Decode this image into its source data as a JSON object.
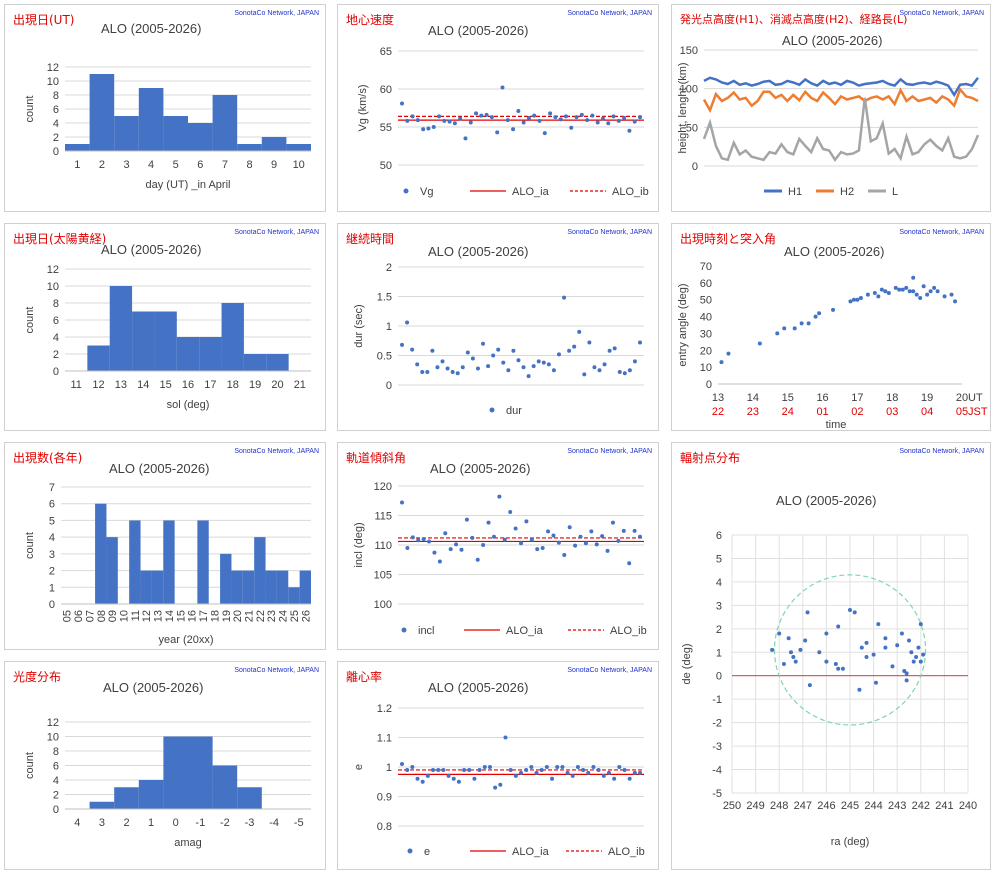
{
  "credit": "SonotaCo Network, JAPAN",
  "colors": {
    "blue": "#4472c4",
    "orange": "#ed7d31",
    "gray": "#a5a5a5",
    "red": "#e00000",
    "mint": "#7fd6b0"
  },
  "panels": [
    {
      "id": "p1",
      "title": "出現日(UT)"
    },
    {
      "id": "p2",
      "title": "地心速度"
    },
    {
      "id": "p3",
      "title": "発光点高度(H1)、消滅点高度(H2)、経路長(L)"
    },
    {
      "id": "p4",
      "title": "出現日(太陽黄経)"
    },
    {
      "id": "p5",
      "title": "継続時間"
    },
    {
      "id": "p6",
      "title": "出現時刻と突入角"
    },
    {
      "id": "p7",
      "title": "出現数(各年)"
    },
    {
      "id": "p8",
      "title": "軌道傾斜角"
    },
    {
      "id": "p9",
      "title": "輻射点分布"
    },
    {
      "id": "p10",
      "title": "光度分布"
    },
    {
      "id": "p11",
      "title": "離心率"
    }
  ],
  "chart_data": [
    {
      "id": "p1",
      "type": "bar",
      "title": "ALO (2005-2026)",
      "xlabel": "day (UT) _in April",
      "ylabel": "count",
      "ylim": [
        0,
        12
      ],
      "bin_edges": [
        0.5,
        1.5,
        2.5,
        3.5,
        4.5,
        5.5,
        6.5,
        7.5,
        8.5,
        9.5,
        10.5
      ],
      "values": [
        1,
        11,
        5,
        9,
        5,
        4,
        8,
        1,
        2,
        1
      ],
      "xticks": [
        "1",
        "2",
        "3",
        "4",
        "5",
        "6",
        "7",
        "8",
        "9",
        "10"
      ],
      "yticks": [
        "0",
        "2",
        "4",
        "6",
        "8",
        "10",
        "12"
      ]
    },
    {
      "id": "p2",
      "type": "scatter",
      "title": "ALO (2005-2026)",
      "ylabel": "Vg (km/s)",
      "ylim": [
        50,
        65
      ],
      "yticks": [
        "50",
        "55",
        "60",
        "65"
      ],
      "series": [
        {
          "name": "Vg",
          "values": [
            58.1,
            55.8,
            56.4,
            55.9,
            54.7,
            54.8,
            55.0,
            56.4,
            55.8,
            55.7,
            55.5,
            56.1,
            53.5,
            55.6,
            56.8,
            56.5,
            56.6,
            56.3,
            54.3,
            60.2,
            55.9,
            54.7,
            57.1,
            55.6,
            56.2,
            56.5,
            55.8,
            54.2,
            56.8,
            56.3,
            56.0,
            56.4,
            54.9,
            56.3,
            56.6,
            55.9,
            56.5,
            55.6,
            56.1,
            55.5,
            56.4,
            55.8,
            56.2,
            54.5,
            55.7,
            56.3
          ]
        },
        {
          "name": "ALO_ia",
          "value": 55.9
        },
        {
          "name": "ALO_ib",
          "value": 56.4
        }
      ]
    },
    {
      "id": "p3",
      "type": "line",
      "title": "ALO (2005-2026)",
      "ylabel": "height, lenght (km)",
      "ylim": [
        0,
        150
      ],
      "yticks": [
        "0",
        "50",
        "100",
        "150"
      ],
      "series": [
        {
          "name": "H1",
          "values": [
            110,
            114,
            112,
            108,
            106,
            110,
            105,
            107,
            104,
            106,
            109,
            110,
            105,
            106,
            110,
            108,
            105,
            112,
            107,
            104,
            110,
            106,
            108,
            105,
            110,
            108,
            104,
            106,
            107,
            108,
            110,
            106,
            104,
            112,
            106,
            105,
            107,
            108,
            106,
            109,
            107,
            104,
            92,
            105,
            106,
            104,
            114
          ]
        },
        {
          "name": "H2",
          "values": [
            86,
            72,
            93,
            84,
            88,
            95,
            86,
            88,
            78,
            84,
            96,
            96,
            88,
            92,
            84,
            92,
            85,
            96,
            88,
            84,
            95,
            88,
            80,
            90,
            86,
            88,
            90,
            84,
            88,
            90,
            86,
            90,
            80,
            98,
            84,
            90,
            84,
            86,
            88,
            82,
            90,
            86,
            78,
            99,
            90,
            88,
            84
          ]
        },
        {
          "name": "L",
          "values": [
            35,
            56,
            26,
            10,
            8,
            30,
            15,
            20,
            12,
            10,
            8,
            18,
            16,
            28,
            18,
            15,
            35,
            26,
            18,
            36,
            22,
            20,
            8,
            18,
            15,
            16,
            20,
            88,
            32,
            36,
            55,
            16,
            22,
            10,
            38,
            15,
            18,
            28,
            34,
            26,
            20,
            36,
            12,
            10,
            12,
            22,
            40
          ]
        }
      ]
    },
    {
      "id": "p4",
      "type": "bar",
      "title": "ALO (2005-2026)",
      "xlabel": "sol (deg)",
      "ylabel": "count",
      "ylim": [
        0,
        12
      ],
      "bin_edges": [
        11.5,
        12.5,
        13.5,
        14.5,
        15.5,
        16.5,
        17.5,
        18.5,
        19.5,
        20.5
      ],
      "values": [
        3,
        10,
        7,
        7,
        4,
        4,
        8,
        2,
        2
      ],
      "xticks": [
        "11",
        "12",
        "13",
        "14",
        "15",
        "16",
        "17",
        "18",
        "19",
        "20",
        "21"
      ],
      "yticks": [
        "0",
        "2",
        "4",
        "6",
        "8",
        "10",
        "12"
      ]
    },
    {
      "id": "p5",
      "type": "scatter",
      "title": "ALO (2005-2026)",
      "ylabel": "dur (sec)",
      "ylim": [
        0,
        2
      ],
      "yticks": [
        "0",
        "0.5",
        "1",
        "1.5",
        "2"
      ],
      "series": [
        {
          "name": "dur",
          "values": [
            0.68,
            1.06,
            0.6,
            0.35,
            0.22,
            0.22,
            0.58,
            0.3,
            0.4,
            0.28,
            0.22,
            0.2,
            0.3,
            0.55,
            0.45,
            0.28,
            0.7,
            0.32,
            0.5,
            0.6,
            0.38,
            0.25,
            0.58,
            0.42,
            0.3,
            0.15,
            0.32,
            0.4,
            0.38,
            0.35,
            0.25,
            0.52,
            1.48,
            0.58,
            0.65,
            0.9,
            0.18,
            0.72,
            0.3,
            0.25,
            0.35,
            0.58,
            0.62,
            0.22,
            0.2,
            0.25,
            0.4,
            0.72
          ]
        }
      ]
    },
    {
      "id": "p6",
      "type": "scatter",
      "title": "ALO (2005-2026)",
      "xlabel": "time",
      "ylabel": "entry angle (deg)",
      "xlim": [
        13,
        20
      ],
      "ylim": [
        0,
        70
      ],
      "xticks": [
        "13",
        "14",
        "15",
        "16",
        "17",
        "18",
        "19",
        "20"
      ],
      "xticks_jst": [
        "22",
        "23",
        "24",
        "01",
        "02",
        "03",
        "04",
        "05"
      ],
      "yticks": [
        "0",
        "10",
        "20",
        "30",
        "40",
        "50",
        "60",
        "70"
      ],
      "axis_tags": [
        "UT",
        "JST"
      ],
      "series": [
        {
          "name": "entry angle",
          "points": [
            [
              13.1,
              13
            ],
            [
              13.3,
              18
            ],
            [
              14.2,
              24
            ],
            [
              14.7,
              30
            ],
            [
              14.9,
              33
            ],
            [
              15.2,
              33
            ],
            [
              15.4,
              36
            ],
            [
              15.6,
              36
            ],
            [
              15.8,
              40
            ],
            [
              15.9,
              42
            ],
            [
              16.3,
              44
            ],
            [
              16.8,
              49
            ],
            [
              16.9,
              50
            ],
            [
              17.0,
              50
            ],
            [
              17.1,
              51
            ],
            [
              17.3,
              53
            ],
            [
              17.5,
              54
            ],
            [
              17.6,
              52
            ],
            [
              17.7,
              56
            ],
            [
              17.8,
              55
            ],
            [
              17.9,
              54
            ],
            [
              18.1,
              57
            ],
            [
              18.2,
              56
            ],
            [
              18.3,
              56
            ],
            [
              18.4,
              57
            ],
            [
              18.5,
              55
            ],
            [
              18.6,
              63
            ],
            [
              18.6,
              55
            ],
            [
              18.7,
              53
            ],
            [
              18.8,
              51
            ],
            [
              18.9,
              58
            ],
            [
              19.0,
              53
            ],
            [
              19.1,
              55
            ],
            [
              19.2,
              57
            ],
            [
              19.3,
              55
            ],
            [
              19.5,
              52
            ],
            [
              19.7,
              53
            ],
            [
              19.8,
              49
            ]
          ]
        }
      ]
    },
    {
      "id": "p7",
      "type": "bar",
      "title": "ALO (2005-2026)",
      "xlabel": "year (20xx)",
      "ylabel": "count",
      "ylim": [
        0,
        7
      ],
      "categories": [
        "05",
        "06",
        "07",
        "08",
        "09",
        "10",
        "11",
        "12",
        "13",
        "14",
        "15",
        "16",
        "17",
        "18",
        "19",
        "20",
        "21",
        "22",
        "23",
        "24",
        "25",
        "26"
      ],
      "values": [
        0,
        0,
        0,
        6,
        4,
        0,
        5,
        2,
        2,
        5,
        0,
        0,
        5,
        0,
        3,
        2,
        2,
        4,
        2,
        2,
        1,
        2
      ],
      "yticks": [
        "0",
        "1",
        "2",
        "3",
        "4",
        "5",
        "6",
        "7"
      ]
    },
    {
      "id": "p8",
      "type": "scatter",
      "title": "ALO (2005-2026)",
      "ylabel": "incl (deg)",
      "ylim": [
        100,
        120
      ],
      "yticks": [
        "100",
        "105",
        "110",
        "115",
        "120"
      ],
      "series": [
        {
          "name": "incl",
          "values": [
            117.2,
            109.5,
            111.3,
            110.8,
            111.0,
            110.6,
            108.7,
            107.2,
            112.0,
            109.3,
            110.1,
            109.2,
            114.3,
            111.2,
            107.5,
            110.0,
            113.8,
            111.4,
            118.2,
            110.9,
            115.6,
            112.8,
            110.3,
            114.0,
            110.9,
            109.3,
            109.5,
            112.3,
            111.6,
            110.4,
            108.3,
            113.0,
            109.9,
            111.4,
            110.3,
            112.3,
            110.1,
            111.5,
            109.0,
            113.8,
            110.7,
            112.4,
            106.9,
            112.4,
            111.4
          ]
        },
        {
          "name": "ALO_ia",
          "value": 110.6
        },
        {
          "name": "ALO_ib",
          "value": 111.2
        }
      ]
    },
    {
      "id": "p9",
      "type": "scatter",
      "title": "ALO (2005-2026)",
      "xlabel": "ra (deg)",
      "ylabel": "de (deg)",
      "xlim": [
        250,
        240
      ],
      "ylim": [
        -5,
        6
      ],
      "xticks": [
        "250",
        "249",
        "248",
        "247",
        "246",
        "245",
        "244",
        "243",
        "242",
        "241",
        "240"
      ],
      "yticks": [
        "-5",
        "-4",
        "-3",
        "-2",
        "-1",
        "0",
        "1",
        "2",
        "3",
        "4",
        "5",
        "6"
      ],
      "circle": {
        "center": [
          245,
          1.1
        ],
        "radius": 3.2
      },
      "series": [
        {
          "name": "radiant",
          "points": [
            [
              248.3,
              1.1
            ],
            [
              248.0,
              1.8
            ],
            [
              247.8,
              0.5
            ],
            [
              247.6,
              1.6
            ],
            [
              247.5,
              1.0
            ],
            [
              247.4,
              0.8
            ],
            [
              247.3,
              0.6
            ],
            [
              247.1,
              1.1
            ],
            [
              246.9,
              1.5
            ],
            [
              246.8,
              2.7
            ],
            [
              246.7,
              -0.4
            ],
            [
              246.3,
              1.0
            ],
            [
              246.0,
              1.8
            ],
            [
              246.0,
              0.6
            ],
            [
              245.6,
              0.5
            ],
            [
              245.5,
              2.1
            ],
            [
              245.5,
              0.3
            ],
            [
              245.3,
              0.3
            ],
            [
              245.0,
              2.8
            ],
            [
              244.8,
              2.7
            ],
            [
              244.6,
              -0.6
            ],
            [
              244.5,
              1.2
            ],
            [
              244.3,
              0.8
            ],
            [
              244.3,
              1.4
            ],
            [
              244.0,
              0.9
            ],
            [
              243.9,
              -0.3
            ],
            [
              243.8,
              2.2
            ],
            [
              243.5,
              1.6
            ],
            [
              243.5,
              1.2
            ],
            [
              243.2,
              0.4
            ],
            [
              243.0,
              1.3
            ],
            [
              242.8,
              1.8
            ],
            [
              242.7,
              0.2
            ],
            [
              242.6,
              -0.2
            ],
            [
              242.5,
              1.5
            ],
            [
              242.4,
              1.0
            ],
            [
              242.3,
              0.6
            ],
            [
              242.2,
              0.8
            ],
            [
              242.1,
              1.2
            ],
            [
              242.0,
              0.6
            ],
            [
              242.0,
              2.2
            ],
            [
              241.9,
              0.9
            ],
            [
              242.6,
              0.1
            ]
          ]
        }
      ]
    },
    {
      "id": "p10",
      "type": "bar",
      "title": "ALO (2005-2026)",
      "xlabel": "amag",
      "ylabel": "count",
      "ylim": [
        0,
        12
      ],
      "bin_edges": [
        3.5,
        2.5,
        1.5,
        0.5,
        -0.5,
        -1.5,
        -2.5,
        -3.5,
        -4.5
      ],
      "values": [
        1,
        3,
        4,
        10,
        10,
        6,
        3,
        0
      ],
      "xticks": [
        "4",
        "3",
        "2",
        "1",
        "0",
        "-1",
        "-2",
        "-3",
        "-4",
        "-5"
      ],
      "yticks": [
        "0",
        "2",
        "4",
        "6",
        "8",
        "10",
        "12"
      ]
    },
    {
      "id": "p11",
      "type": "scatter",
      "title": "ALO (2005-2026)",
      "ylabel": "e",
      "ylim": [
        0.8,
        1.2
      ],
      "yticks": [
        "0.8",
        "0.9",
        "1",
        "1.1",
        "1.2"
      ],
      "series": [
        {
          "name": "e",
          "values": [
            1.01,
            0.99,
            1.0,
            0.96,
            0.95,
            0.97,
            0.99,
            0.99,
            0.99,
            0.97,
            0.96,
            0.95,
            0.99,
            0.99,
            0.96,
            0.99,
            1.0,
            1.0,
            0.93,
            0.94,
            1.1,
            0.99,
            0.97,
            0.98,
            0.99,
            1.0,
            0.98,
            0.99,
            1.0,
            0.96,
            1.0,
            1.0,
            0.98,
            0.97,
            1.0,
            0.99,
            0.98,
            1.0,
            0.99,
            0.97,
            0.98,
            0.96,
            1.0,
            0.99,
            0.96,
            0.98,
            0.98
          ]
        },
        {
          "name": "ALO_ia",
          "value": 0.975
        },
        {
          "name": "ALO_ib",
          "value": 0.99
        }
      ]
    }
  ]
}
